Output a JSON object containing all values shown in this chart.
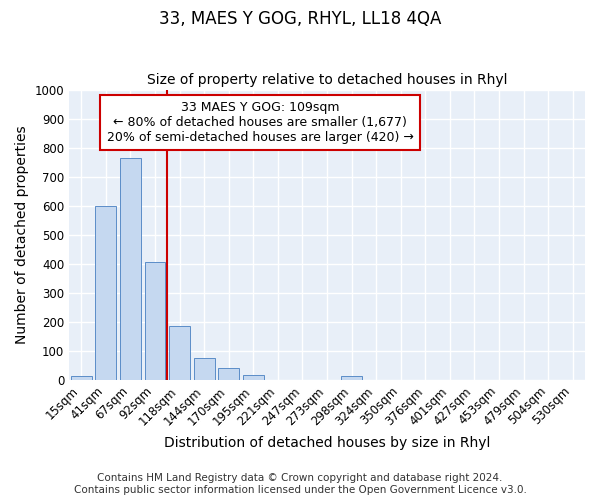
{
  "title": "33, MAES Y GOG, RHYL, LL18 4QA",
  "subtitle": "Size of property relative to detached houses in Rhyl",
  "xlabel": "Distribution of detached houses by size in Rhyl",
  "ylabel": "Number of detached properties",
  "categories": [
    "15sqm",
    "41sqm",
    "67sqm",
    "92sqm",
    "118sqm",
    "144sqm",
    "170sqm",
    "195sqm",
    "221sqm",
    "247sqm",
    "273sqm",
    "298sqm",
    "324sqm",
    "350sqm",
    "376sqm",
    "401sqm",
    "427sqm",
    "453sqm",
    "479sqm",
    "504sqm",
    "530sqm"
  ],
  "values": [
    15,
    600,
    765,
    405,
    185,
    75,
    40,
    18,
    0,
    0,
    0,
    13,
    0,
    0,
    0,
    0,
    0,
    0,
    0,
    0,
    0
  ],
  "bar_color": "#c5d8f0",
  "bar_edge_color": "#5b8dc8",
  "vline_index": 4,
  "vline_color": "#cc0000",
  "annotation_line1": "33 MAES Y GOG: 109sqm",
  "annotation_line2": "← 80% of detached houses are smaller (1,677)",
  "annotation_line3": "20% of semi-detached houses are larger (420) →",
  "annotation_box_facecolor": "#ffffff",
  "annotation_box_edgecolor": "#cc0000",
  "ylim": [
    0,
    1000
  ],
  "yticks": [
    0,
    100,
    200,
    300,
    400,
    500,
    600,
    700,
    800,
    900,
    1000
  ],
  "footer": "Contains HM Land Registry data © Crown copyright and database right 2024.\nContains public sector information licensed under the Open Government Licence v3.0.",
  "bg_color": "#e8eff8",
  "grid_color": "#ffffff",
  "title_fontsize": 12,
  "subtitle_fontsize": 10,
  "axis_label_fontsize": 10,
  "tick_fontsize": 8.5,
  "annotation_fontsize": 9,
  "footer_fontsize": 7.5
}
